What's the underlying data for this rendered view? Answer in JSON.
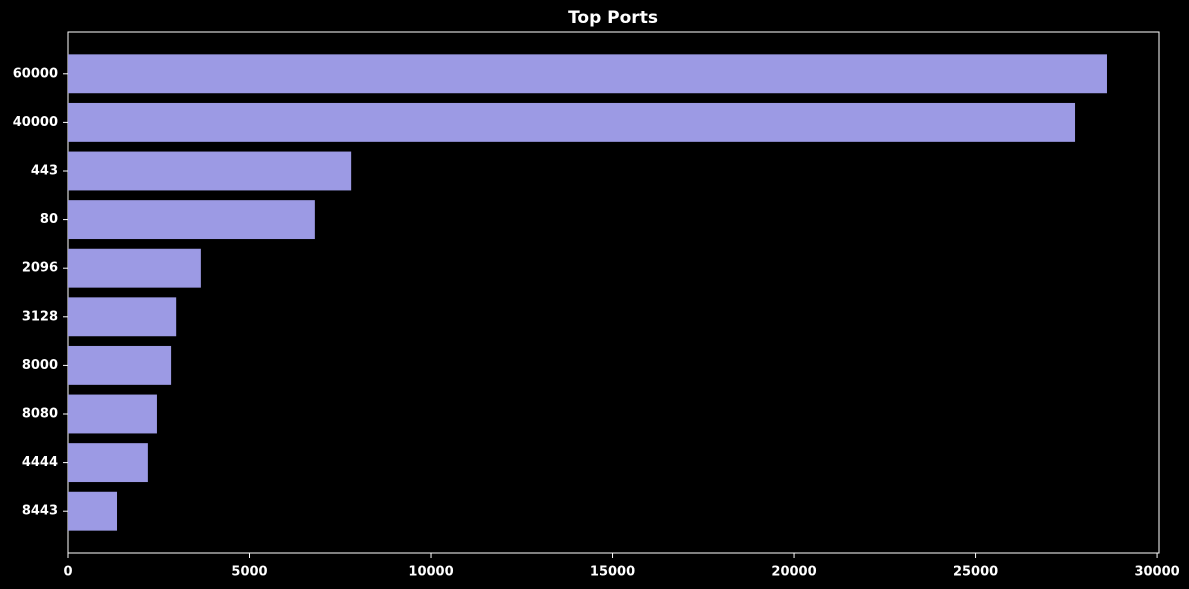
{
  "chart_data": {
    "type": "barh",
    "title": "Top Ports",
    "categories": [
      "60000",
      "40000",
      "443",
      "80",
      "2096",
      "3128",
      "8000",
      "8080",
      "4444",
      "8443"
    ],
    "values": [
      28620,
      27740,
      7800,
      6800,
      3660,
      2980,
      2840,
      2450,
      2200,
      1350
    ],
    "color": "#9c9ae4",
    "xlim": [
      0,
      30053
    ],
    "xticks": [
      0,
      5000,
      10000,
      15000,
      20000,
      25000,
      30000
    ],
    "grid": false
  }
}
